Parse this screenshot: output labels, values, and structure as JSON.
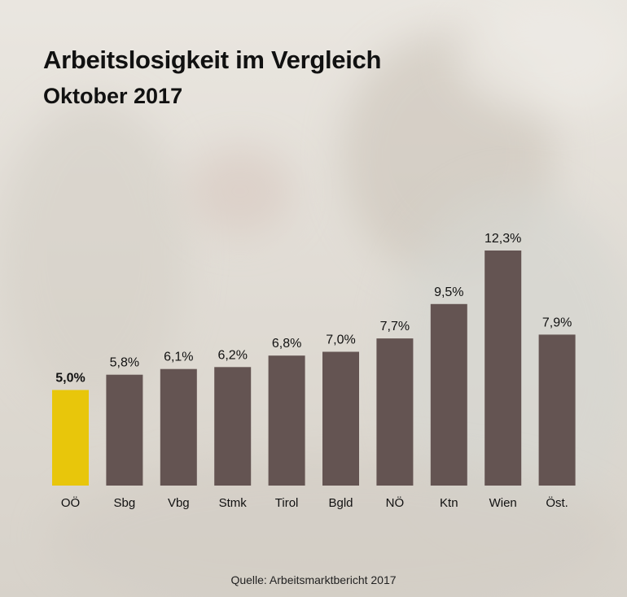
{
  "title": "Arbeitslosigkeit im Vergleich",
  "subtitle": "Oktober 2017",
  "source": "Quelle: Arbeitsmarktbericht 2017",
  "colors": {
    "highlight": "#e8c60b",
    "bar": "#645452",
    "text": "#111111"
  },
  "chart_data": {
    "type": "bar",
    "title": "Arbeitslosigkeit im Vergleich",
    "subtitle": "Oktober 2017",
    "categories": [
      "OÖ",
      "Sbg",
      "Vbg",
      "Stmk",
      "Tirol",
      "Bgld",
      "NÖ",
      "Ktn",
      "Wien",
      "Öst."
    ],
    "values": [
      5.0,
      5.8,
      6.1,
      6.2,
      6.8,
      7.0,
      7.7,
      9.5,
      12.3,
      7.9
    ],
    "value_labels": [
      "5,0%",
      "5,8%",
      "6,1%",
      "6,2%",
      "6,8%",
      "7,0%",
      "7,7%",
      "9,5%",
      "12,3%",
      "7,9%"
    ],
    "highlight_index": 0,
    "unit": "%",
    "ylim": [
      0,
      12.3
    ],
    "grid": false,
    "legend": "none",
    "xlabel": "",
    "ylabel": ""
  }
}
